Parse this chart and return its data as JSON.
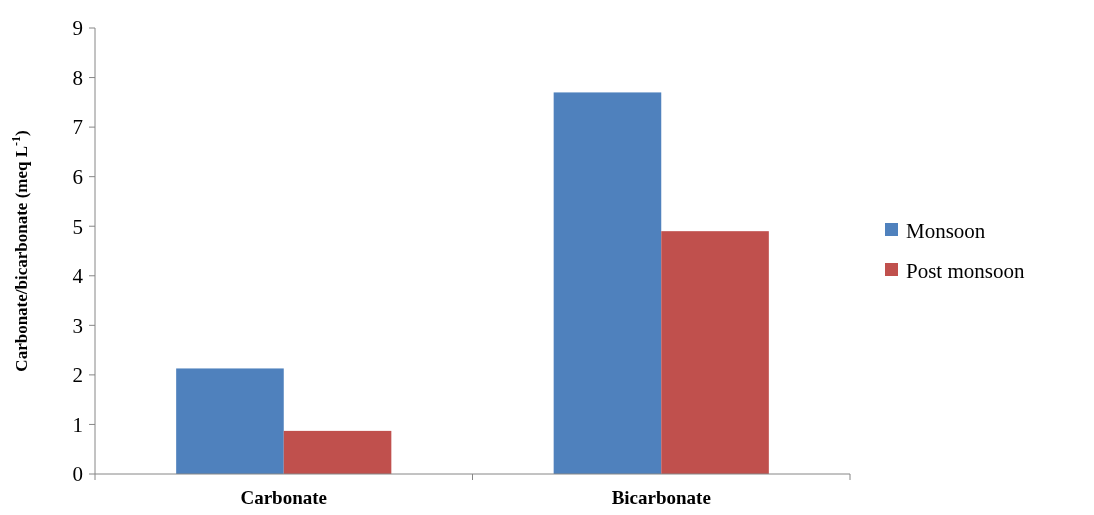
{
  "chart_data": {
    "type": "bar",
    "ylabel": "Carbonate/bicarbonate (meq L$^{-1}$)",
    "categories": [
      "Carbonate",
      "Bicarbonate"
    ],
    "series": [
      {
        "name": "Monsoon",
        "color": "#4f81bd",
        "values": [
          2.13,
          7.7
        ]
      },
      {
        "name": "Post monsoon",
        "color": "#c0504d",
        "values": [
          0.87,
          4.9
        ]
      }
    ],
    "ylim": [
      0,
      9
    ],
    "yticks": [
      0,
      1,
      2,
      3,
      4,
      5,
      6,
      7,
      8,
      9
    ],
    "grid": false,
    "legend": "right"
  }
}
